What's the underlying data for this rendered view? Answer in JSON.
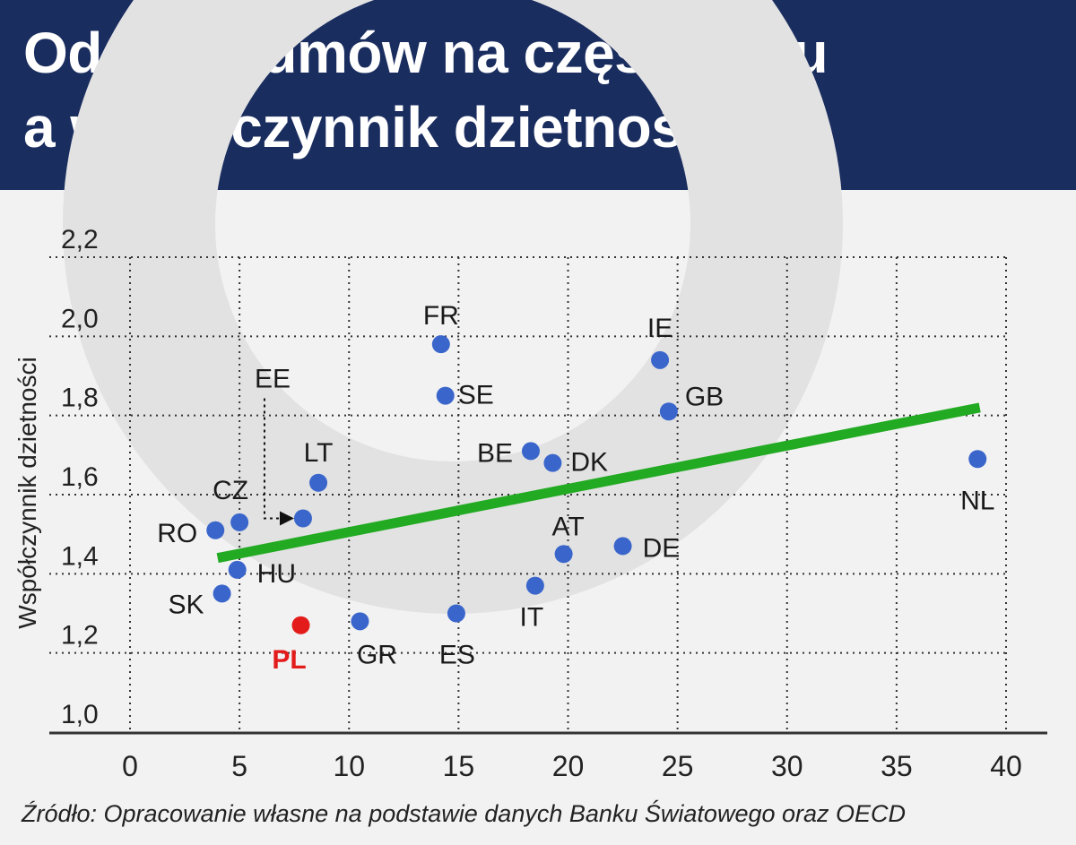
{
  "header": {
    "title_line1": "Odsetek umów na część etatu",
    "title_line2": "a współczynnik dzietności"
  },
  "colors": {
    "header_bg": "#1a2d5f",
    "point": "#3a66cc",
    "highlight": "#e31b1b",
    "trend": "#22aa22",
    "watermark": "#e2e2e2"
  },
  "chart_data": {
    "type": "scatter",
    "ylabel": "Współczynnik dzietności",
    "xlabel": "",
    "xlim": [
      0,
      40
    ],
    "ylim": [
      1.0,
      2.2
    ],
    "xticks": [
      "0",
      "5",
      "10",
      "15",
      "20",
      "25",
      "30",
      "35",
      "40"
    ],
    "yticks": [
      "1,0",
      "1,2",
      "1,4",
      "1,6",
      "1,8",
      "2,0",
      "2,2"
    ],
    "grid": true,
    "points": [
      {
        "label": "FR",
        "x": 14.2,
        "y": 1.98
      },
      {
        "label": "SE",
        "x": 14.4,
        "y": 1.85
      },
      {
        "label": "IE",
        "x": 24.2,
        "y": 1.94
      },
      {
        "label": "GB",
        "x": 24.6,
        "y": 1.81
      },
      {
        "label": "BE",
        "x": 18.3,
        "y": 1.71
      },
      {
        "label": "DK",
        "x": 19.3,
        "y": 1.68
      },
      {
        "label": "NL",
        "x": 38.7,
        "y": 1.69
      },
      {
        "label": "LT",
        "x": 8.6,
        "y": 1.63
      },
      {
        "label": "CZ",
        "x": 5.0,
        "y": 1.53
      },
      {
        "label": "RO",
        "x": 3.9,
        "y": 1.51
      },
      {
        "label": "EE",
        "x": 7.9,
        "y": 1.54
      },
      {
        "label": "AT",
        "x": 19.8,
        "y": 1.45
      },
      {
        "label": "DE",
        "x": 22.5,
        "y": 1.47
      },
      {
        "label": "HU",
        "x": 4.9,
        "y": 1.41
      },
      {
        "label": "SK",
        "x": 4.2,
        "y": 1.35
      },
      {
        "label": "IT",
        "x": 18.5,
        "y": 1.37
      },
      {
        "label": "ES",
        "x": 14.9,
        "y": 1.3
      },
      {
        "label": "GR",
        "x": 10.5,
        "y": 1.28
      },
      {
        "label": "PL",
        "x": 7.8,
        "y": 1.27,
        "highlight": true
      }
    ],
    "trendline": {
      "x": [
        4.0,
        38.8
      ],
      "y": [
        1.44,
        1.82
      ]
    }
  },
  "footer": {
    "source": "Źródło: Opracowanie własne na podstawie danych Banku Światowego oraz OECD"
  }
}
